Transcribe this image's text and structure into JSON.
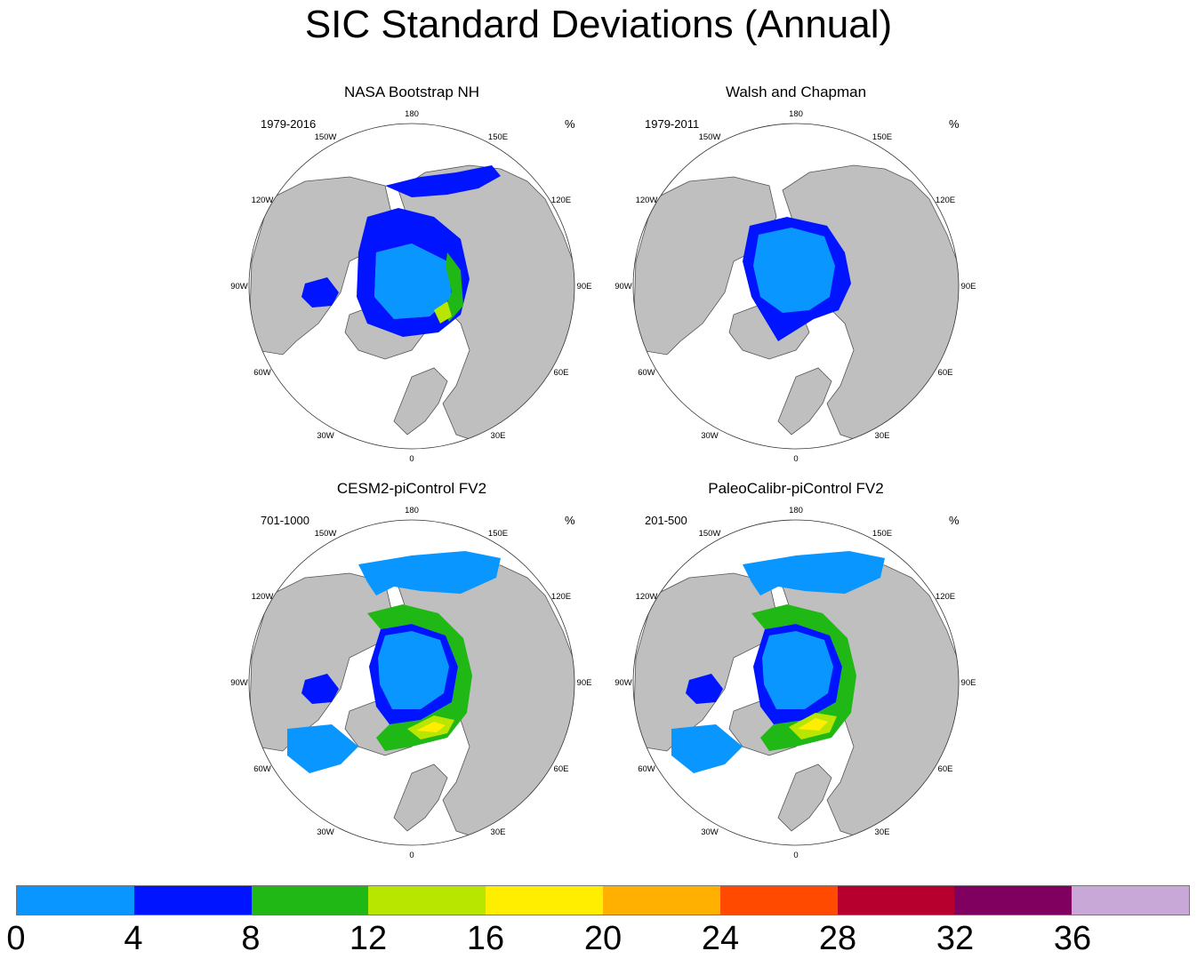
{
  "title": "SIC Standard Deviations (Annual)",
  "longitude_labels": [
    "180",
    "150E",
    "120E",
    "90E",
    "60E",
    "30E",
    "0",
    "30W",
    "60W",
    "90W",
    "120W",
    "150W"
  ],
  "panels": [
    {
      "title": "NASA Bootstrap NH",
      "period": "1979-2016",
      "unit": "%"
    },
    {
      "title": "Walsh and Chapman",
      "period": "1979-2011",
      "unit": "%"
    },
    {
      "title": "CESM2-piControl FV2",
      "period": "701-1000",
      "unit": "%"
    },
    {
      "title": "PaleoCalibr-piControl FV2",
      "period": "201-500",
      "unit": "%"
    }
  ],
  "colorbar": {
    "labels": [
      "0",
      "4",
      "8",
      "12",
      "16",
      "20",
      "24",
      "28",
      "32",
      "36"
    ],
    "colors": [
      "#0a96ff",
      "#0014ff",
      "#1fb814",
      "#b9e600",
      "#ffee00",
      "#ffb000",
      "#ff4a00",
      "#b8002e",
      "#800060",
      "#c8a8d6"
    ]
  },
  "map_colors": {
    "land": "#bfbfbf",
    "ocean": "#ffffff",
    "coast": "#555555"
  }
}
